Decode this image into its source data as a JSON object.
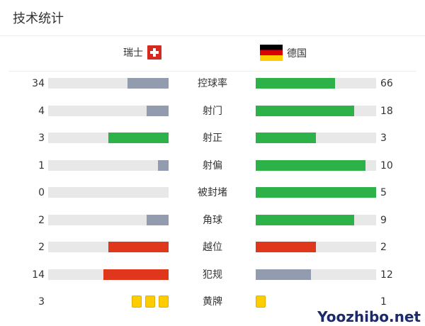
{
  "title": "技术统计",
  "home": {
    "name": "瑞士",
    "flag": "switzerland-flag"
  },
  "away": {
    "name": "德国",
    "flag": "germany-flag"
  },
  "colors": {
    "win": "#2db24a",
    "lose": "#929cae",
    "bad": "#e0361c",
    "track": "#e8e8e8",
    "card": "#ffcc00"
  },
  "stats": [
    {
      "label": "控球率",
      "home": 34,
      "away": 66,
      "home_color": "lose",
      "away_color": "win"
    },
    {
      "label": "射门",
      "home": 4,
      "away": 18,
      "home_color": "lose",
      "away_color": "win"
    },
    {
      "label": "射正",
      "home": 3,
      "away": 3,
      "home_color": "win",
      "away_color": "win"
    },
    {
      "label": "射偏",
      "home": 1,
      "away": 10,
      "home_color": "lose",
      "away_color": "win"
    },
    {
      "label": "被封堵",
      "home": 0,
      "away": 5,
      "home_color": "lose",
      "away_color": "win"
    },
    {
      "label": "角球",
      "home": 2,
      "away": 9,
      "home_color": "lose",
      "away_color": "win"
    },
    {
      "label": "越位",
      "home": 2,
      "away": 2,
      "home_color": "bad",
      "away_color": "bad"
    },
    {
      "label": "犯规",
      "home": 14,
      "away": 12,
      "home_color": "bad",
      "away_color": "lose"
    }
  ],
  "yellow_cards": {
    "label": "黄牌",
    "home": 3,
    "away": 1
  },
  "watermark": "Yoozhibo.net"
}
